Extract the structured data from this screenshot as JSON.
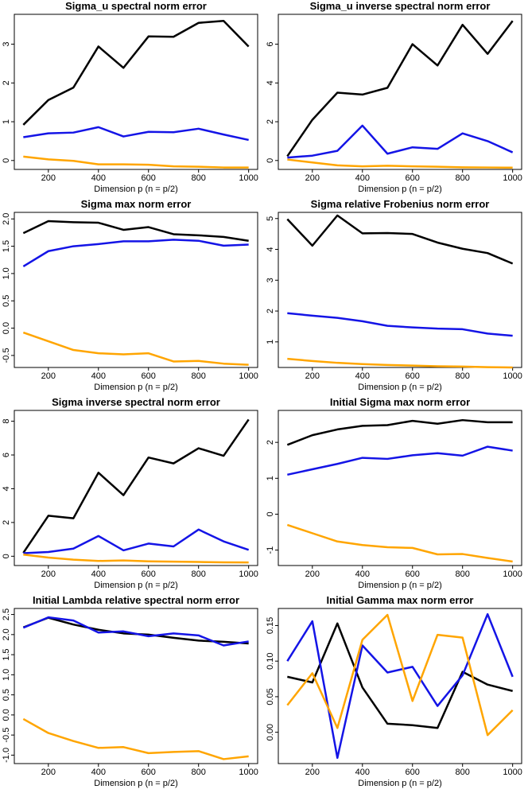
{
  "chart_data": [
    {
      "type": "line",
      "title": "Sigma_u spectral norm error",
      "xlabel": "Dimension p (n = p/2)",
      "x": [
        100,
        200,
        300,
        400,
        500,
        600,
        700,
        800,
        900,
        1000
      ],
      "xlim": [
        64,
        1036
      ],
      "xticks": [
        200,
        400,
        600,
        800,
        1000
      ],
      "ylim": [
        -0.23,
        3.77
      ],
      "yticks": [
        0,
        1,
        2,
        3
      ],
      "series": [
        {
          "color": "#000000",
          "values": [
            0.92,
            1.56,
            1.88,
            2.94,
            2.39,
            3.2,
            3.19,
            3.55,
            3.6,
            2.94
          ]
        },
        {
          "color": "#1414e6",
          "values": [
            0.6,
            0.7,
            0.72,
            0.86,
            0.62,
            0.74,
            0.73,
            0.82,
            0.67,
            0.53
          ]
        },
        {
          "color": "#ffa500",
          "values": [
            0.1,
            0.03,
            -0.01,
            -0.1,
            -0.1,
            -0.11,
            -0.15,
            -0.16,
            -0.18,
            -0.18
          ]
        }
      ]
    },
    {
      "type": "line",
      "title": "Sigma_u inverse spectral norm error",
      "xlabel": "Dimension p (n = p/2)",
      "x": [
        100,
        200,
        300,
        400,
        500,
        600,
        700,
        800,
        900,
        1000
      ],
      "xlim": [
        64,
        1036
      ],
      "xticks": [
        200,
        400,
        600,
        800,
        1000
      ],
      "ylim": [
        -0.46,
        7.54
      ],
      "yticks": [
        0,
        2,
        4,
        6
      ],
      "series": [
        {
          "color": "#000000",
          "values": [
            0.22,
            2.1,
            3.5,
            3.4,
            3.75,
            6.0,
            4.9,
            7.0,
            5.5,
            7.2
          ]
        },
        {
          "color": "#1414e6",
          "values": [
            0.15,
            0.25,
            0.5,
            1.8,
            0.35,
            0.68,
            0.6,
            1.4,
            1.0,
            0.42
          ]
        },
        {
          "color": "#ffa500",
          "values": [
            0.05,
            -0.1,
            -0.25,
            -0.3,
            -0.27,
            -0.3,
            -0.32,
            -0.35,
            -0.36,
            -0.37
          ]
        }
      ]
    },
    {
      "type": "line",
      "title": "Sigma max norm error",
      "xlabel": "Dimension p (n = p/2)",
      "x": [
        100,
        200,
        300,
        400,
        500,
        600,
        700,
        800,
        900,
        1000
      ],
      "xlim": [
        64,
        1036
      ],
      "xticks": [
        200,
        400,
        600,
        800,
        1000
      ],
      "ylim": [
        -0.72,
        2.12
      ],
      "yticks": [
        {
          "value": -0.5,
          "label": "-0.5"
        },
        {
          "value": 0,
          "label": "0.0"
        },
        {
          "value": 0.5,
          "label": "0.5"
        },
        {
          "value": 1,
          "label": "1.0"
        },
        {
          "value": 1.5,
          "label": "1.5"
        },
        {
          "value": 2,
          "label": "2.0"
        }
      ],
      "series": [
        {
          "color": "#000000",
          "values": [
            1.74,
            1.96,
            1.94,
            1.93,
            1.8,
            1.85,
            1.72,
            1.7,
            1.67,
            1.6
          ]
        },
        {
          "color": "#1414e6",
          "values": [
            1.13,
            1.41,
            1.5,
            1.54,
            1.59,
            1.59,
            1.62,
            1.6,
            1.51,
            1.53
          ]
        },
        {
          "color": "#ffa500",
          "values": [
            -0.08,
            -0.24,
            -0.4,
            -0.46,
            -0.48,
            -0.46,
            -0.61,
            -0.6,
            -0.65,
            -0.67
          ]
        }
      ]
    },
    {
      "type": "line",
      "title": "Sigma relative Frobenius norm error",
      "xlabel": "Dimension p (n = p/2)",
      "x": [
        100,
        200,
        300,
        400,
        500,
        600,
        700,
        800,
        900,
        1000
      ],
      "xlim": [
        64,
        1036
      ],
      "xticks": [
        200,
        400,
        600,
        800,
        1000
      ],
      "ylim": [
        0.17,
        5.2
      ],
      "yticks": [
        1,
        2,
        3,
        4,
        5
      ],
      "series": [
        {
          "color": "#000000",
          "values": [
            4.98,
            4.12,
            5.1,
            4.52,
            4.53,
            4.5,
            4.22,
            4.02,
            3.88,
            3.54
          ]
        },
        {
          "color": "#1414e6",
          "values": [
            1.93,
            1.85,
            1.78,
            1.67,
            1.52,
            1.47,
            1.43,
            1.41,
            1.27,
            1.2
          ]
        },
        {
          "color": "#ffa500",
          "values": [
            0.45,
            0.38,
            0.32,
            0.28,
            0.25,
            0.23,
            0.21,
            0.2,
            0.18,
            0.17
          ]
        }
      ]
    },
    {
      "type": "line",
      "title": "Sigma inverse spectral norm error",
      "xlabel": "Dimension p (n = p/2)",
      "x": [
        100,
        200,
        300,
        400,
        500,
        600,
        700,
        800,
        900,
        1000
      ],
      "xlim": [
        64,
        1036
      ],
      "xticks": [
        200,
        400,
        600,
        800,
        1000
      ],
      "ylim": [
        -0.55,
        8.64
      ],
      "yticks": [
        0,
        2,
        4,
        6,
        8
      ],
      "series": [
        {
          "color": "#000000",
          "values": [
            0.2,
            2.4,
            2.25,
            4.95,
            3.62,
            5.85,
            5.5,
            6.4,
            5.95,
            8.1
          ]
        },
        {
          "color": "#1414e6",
          "values": [
            0.18,
            0.25,
            0.45,
            1.2,
            0.35,
            0.75,
            0.58,
            1.58,
            0.88,
            0.38
          ]
        },
        {
          "color": "#ffa500",
          "values": [
            0.1,
            -0.08,
            -0.2,
            -0.28,
            -0.25,
            -0.3,
            -0.32,
            -0.34,
            -0.36,
            -0.37
          ]
        }
      ]
    },
    {
      "type": "line",
      "title": "Initial Sigma max norm error",
      "xlabel": "Dimension p (n = p/2)",
      "x": [
        100,
        200,
        300,
        400,
        500,
        600,
        700,
        800,
        900,
        1000
      ],
      "xlim": [
        64,
        1036
      ],
      "xticks": [
        200,
        400,
        600,
        800,
        1000
      ],
      "ylim": [
        -1.43,
        2.89
      ],
      "yticks": [
        -1,
        0,
        1,
        2
      ],
      "series": [
        {
          "color": "#000000",
          "values": [
            1.93,
            2.2,
            2.36,
            2.46,
            2.48,
            2.6,
            2.52,
            2.62,
            2.56,
            2.56
          ]
        },
        {
          "color": "#1414e6",
          "values": [
            1.1,
            1.25,
            1.4,
            1.57,
            1.54,
            1.64,
            1.7,
            1.63,
            1.88,
            1.77
          ]
        },
        {
          "color": "#ffa500",
          "values": [
            -0.3,
            -0.53,
            -0.76,
            -0.86,
            -0.92,
            -0.94,
            -1.12,
            -1.11,
            -1.22,
            -1.32
          ]
        }
      ]
    },
    {
      "type": "line",
      "title": "Initial Lambda relative spectral norm error",
      "xlabel": "Dimension p (n = p/2)",
      "x": [
        100,
        200,
        300,
        400,
        500,
        600,
        700,
        800,
        900,
        1000
      ],
      "xlim": [
        64,
        1036
      ],
      "xticks": [
        200,
        400,
        600,
        800,
        1000
      ],
      "ylim": [
        -1.21,
        2.65
      ],
      "yticks": [
        {
          "value": -1,
          "label": "-1.0"
        },
        {
          "value": -0.5,
          "label": "-0.5"
        },
        {
          "value": 0,
          "label": "0.0"
        },
        {
          "value": 0.5,
          "label": "0.5"
        },
        {
          "value": 1,
          "label": "1.0"
        },
        {
          "value": 1.5,
          "label": "1.5"
        },
        {
          "value": 2,
          "label": "2.0"
        },
        {
          "value": 2.5,
          "label": "2.5"
        }
      ],
      "series": [
        {
          "color": "#000000",
          "values": [
            2.18,
            2.42,
            2.25,
            2.12,
            2.03,
            2.0,
            1.92,
            1.85,
            1.82,
            1.78
          ]
        },
        {
          "color": "#1414e6",
          "values": [
            2.17,
            2.43,
            2.35,
            2.05,
            2.08,
            1.96,
            2.03,
            1.98,
            1.73,
            1.83
          ]
        },
        {
          "color": "#ffa500",
          "values": [
            -0.1,
            -0.45,
            -0.65,
            -0.82,
            -0.8,
            -0.95,
            -0.92,
            -0.9,
            -1.1,
            -1.03
          ]
        }
      ]
    },
    {
      "type": "line",
      "title": "Initial Gamma max norm error",
      "xlabel": "Dimension p (n = p/2)",
      "x": [
        100,
        200,
        300,
        400,
        500,
        600,
        700,
        800,
        900,
        1000
      ],
      "xlim": [
        64,
        1036
      ],
      "xticks": [
        200,
        400,
        600,
        800,
        1000
      ],
      "ylim": [
        -0.044,
        0.174
      ],
      "yticks": [
        {
          "value": 0,
          "label": "0.00"
        },
        {
          "value": 0.05,
          "label": "0.05"
        },
        {
          "value": 0.1,
          "label": "0.10"
        },
        {
          "value": 0.15,
          "label": "0.15"
        }
      ],
      "series": [
        {
          "color": "#000000",
          "values": [
            0.078,
            0.07,
            0.153,
            0.063,
            0.012,
            0.01,
            0.006,
            0.085,
            0.067,
            0.058
          ]
        },
        {
          "color": "#1414e6",
          "values": [
            0.1,
            0.156,
            -0.036,
            0.122,
            0.084,
            0.092,
            0.037,
            0.08,
            0.166,
            0.078
          ]
        },
        {
          "color": "#ffa500",
          "values": [
            0.038,
            0.083,
            0.006,
            0.13,
            0.165,
            0.044,
            0.137,
            0.133,
            -0.004,
            0.031
          ]
        }
      ]
    }
  ]
}
